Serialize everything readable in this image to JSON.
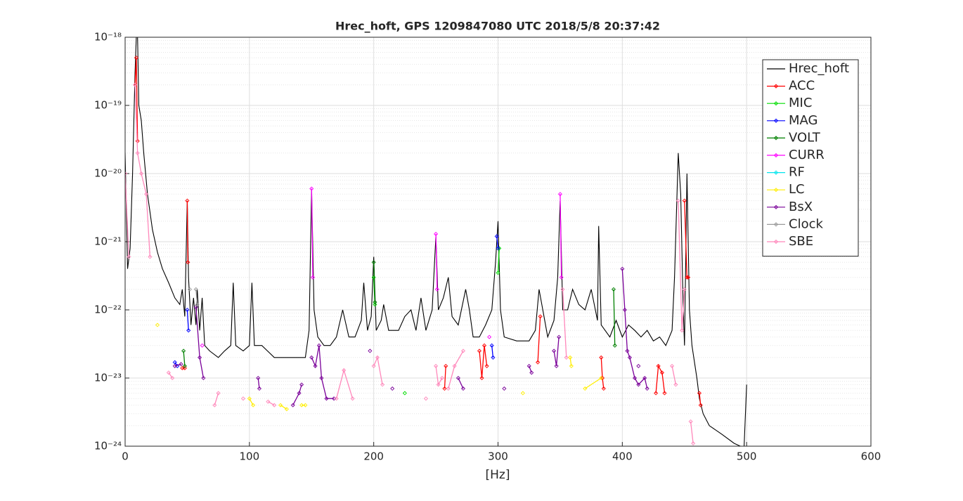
{
  "chart_data": {
    "type": "line",
    "title": "Hrec_hoft, GPS 1209847080 UTC 2018/5/8 20:37:42",
    "x_label": "[Hz]",
    "xlim": [
      0,
      600
    ],
    "xticks": [
      0,
      100,
      200,
      300,
      400,
      500,
      600
    ],
    "ylim": [
      1e-24,
      1e-18
    ],
    "y_scale": "log",
    "yticks": [
      {
        "value": 1e-24,
        "label": "10⁻²⁴"
      },
      {
        "value": 1e-23,
        "label": "10⁻²³"
      },
      {
        "value": 1e-22,
        "label": "10⁻²²"
      },
      {
        "value": 1e-21,
        "label": "10⁻²¹"
      },
      {
        "value": 1e-20,
        "label": "10⁻²⁰"
      },
      {
        "value": 1e-19,
        "label": "10⁻¹⁹"
      },
      {
        "value": 1e-18,
        "label": "10⁻¹⁸"
      }
    ],
    "grid": true,
    "minor_grid": true,
    "legend": "northeast",
    "series": [
      {
        "name": "Hrec_hoft",
        "color": "#000000",
        "marker": "none",
        "x": [
          0,
          2,
          4,
          6,
          8,
          9,
          10,
          11,
          13,
          15,
          18,
          22,
          26,
          30,
          35,
          40,
          44,
          46,
          48,
          50,
          51,
          53,
          55,
          57,
          58,
          60,
          62,
          64,
          68,
          75,
          80,
          85,
          87,
          89,
          95,
          100,
          102,
          104,
          110,
          120,
          130,
          140,
          145,
          148,
          150,
          152,
          155,
          160,
          165,
          170,
          175,
          180,
          185,
          190,
          192,
          195,
          198,
          200,
          202,
          206,
          208,
          212,
          220,
          225,
          230,
          234,
          238,
          242,
          247,
          250,
          252,
          256,
          260,
          263,
          268,
          274,
          277,
          280,
          285,
          290,
          295,
          298,
          300,
          302,
          305,
          315,
          325,
          330,
          333,
          337,
          340,
          345,
          348,
          350,
          352,
          356,
          360,
          365,
          370,
          375,
          380,
          381,
          383,
          390,
          395,
          400,
          405,
          410,
          415,
          420,
          425,
          430,
          435,
          440,
          442,
          445,
          447,
          449,
          450,
          452,
          454,
          456,
          460,
          462,
          465,
          470,
          480,
          490,
          495,
          498,
          500
        ],
        "values": [
          2e-20,
          4e-22,
          8e-22,
          1e-20,
          3e-19,
          1e-18,
          1e-18,
          1e-19,
          6e-20,
          2e-20,
          5e-21,
          1.5e-21,
          7e-22,
          4e-22,
          2.5e-22,
          1.5e-22,
          1.2e-22,
          2e-22,
          8e-23,
          4e-21,
          3e-22,
          6e-23,
          1.5e-22,
          6e-23,
          2e-22,
          5e-23,
          1.5e-22,
          3e-23,
          2.5e-23,
          2e-23,
          2.5e-23,
          3e-23,
          2.5e-22,
          3e-23,
          2.5e-23,
          3e-23,
          2.5e-22,
          3e-23,
          3e-23,
          2e-23,
          2e-23,
          2e-23,
          2e-23,
          5e-23,
          6e-21,
          1e-22,
          4e-23,
          3e-23,
          3e-23,
          4e-23,
          1e-22,
          4e-23,
          4e-23,
          7e-23,
          2.5e-22,
          5e-23,
          8e-23,
          6e-22,
          5e-23,
          7e-23,
          1.2e-22,
          5e-23,
          5e-23,
          8e-23,
          1e-22,
          5e-23,
          1.5e-22,
          5e-23,
          1e-22,
          1.2e-21,
          1e-22,
          1.5e-22,
          3e-22,
          8e-23,
          6e-23,
          2e-22,
          1e-22,
          4e-23,
          4e-23,
          6e-23,
          1e-22,
          5e-22,
          2e-21,
          1e-22,
          4e-23,
          3.5e-23,
          3.5e-23,
          5e-23,
          2e-22,
          8e-23,
          4e-23,
          7e-23,
          3e-22,
          4e-21,
          1e-22,
          1e-22,
          2e-22,
          1.2e-22,
          1e-22,
          2e-22,
          7e-23,
          1.7e-21,
          6e-23,
          4e-23,
          7e-23,
          4e-23,
          6e-23,
          5e-23,
          4e-23,
          5e-23,
          3.5e-23,
          4e-23,
          3e-23,
          5e-23,
          3e-22,
          2e-20,
          5e-21,
          1e-22,
          3e-23,
          1e-20,
          1e-22,
          3e-23,
          1e-23,
          5e-24,
          3e-24,
          2e-24,
          1.5e-24,
          1.1e-24,
          1e-24,
          1e-24,
          8e-24
        ]
      },
      {
        "name": "ACC",
        "color": "#ff0000",
        "marker": "diamond",
        "x": [
          8,
          9,
          10,
          null,
          50,
          50.5,
          null,
          46,
          48,
          null,
          257,
          258,
          null,
          285,
          287,
          289,
          291,
          null,
          332,
          334,
          null,
          383,
          384,
          385,
          null,
          427,
          429,
          432,
          434,
          null,
          450,
          452,
          453,
          null,
          462,
          463
        ],
        "values": [
          2e-19,
          5e-19,
          3e-20,
          null,
          4e-21,
          5e-22,
          null,
          1.4e-23,
          1.4e-23,
          null,
          7e-24,
          1.5e-23,
          null,
          2.5e-23,
          1e-23,
          3e-23,
          1.5e-23,
          null,
          1.7e-23,
          8e-23,
          null,
          2e-23,
          1e-23,
          7e-24,
          null,
          6e-24,
          1.5e-23,
          1.2e-23,
          6e-24,
          null,
          4e-21,
          3e-22,
          3e-22,
          null,
          6e-24,
          4e-24
        ]
      },
      {
        "name": "MIC",
        "color": "#00dd00",
        "marker": "diamond",
        "x": [
          200,
          201,
          null,
          225,
          null,
          300,
          301
        ],
        "values": [
          3e-22,
          1.2e-22,
          null,
          6e-24,
          null,
          3.5e-22,
          8e-22
        ]
      },
      {
        "name": "MAG",
        "color": "#0000ff",
        "marker": "diamond",
        "x": [
          50,
          51,
          null,
          299,
          300,
          null,
          40,
          42,
          null,
          295,
          296
        ],
        "values": [
          1e-22,
          5e-23,
          null,
          1.2e-21,
          8e-22,
          null,
          1.7e-23,
          1.5e-23,
          null,
          3e-23,
          2e-23
        ]
      },
      {
        "name": "VOLT",
        "color": "#008000",
        "marker": "diamond",
        "x": [
          200,
          201,
          null,
          47,
          48,
          null,
          393,
          394
        ],
        "values": [
          5e-22,
          1.3e-22,
          null,
          2.5e-23,
          1.5e-23,
          null,
          2e-22,
          3e-23
        ]
      },
      {
        "name": "CURR",
        "color": "#ff00ff",
        "marker": "diamond",
        "x": [
          150,
          151,
          null,
          250,
          251,
          null,
          350,
          351,
          null,
          62,
          null,
          293
        ],
        "values": [
          6e-21,
          3e-22,
          null,
          1.3e-21,
          2e-22,
          null,
          5e-21,
          3e-22,
          null,
          3e-23,
          null,
          4e-23
        ]
      },
      {
        "name": "RF",
        "color": "#00e5ee",
        "marker": "diamond",
        "x": [],
        "values": []
      },
      {
        "name": "LC",
        "color": "#ffee00",
        "marker": "diamond",
        "x": [
          26,
          null,
          100,
          103,
          null,
          125,
          130,
          null,
          142,
          145,
          null,
          370,
          383,
          null,
          358,
          359,
          null,
          320
        ],
        "values": [
          6e-23,
          null,
          5e-24,
          4e-24,
          null,
          4e-24,
          3.5e-24,
          null,
          4e-24,
          4e-24,
          null,
          7e-24,
          1e-23,
          null,
          2e-23,
          1.5e-23,
          null,
          6e-24
        ]
      },
      {
        "name": "BsX",
        "color": "#7a0099",
        "marker": "diamond",
        "x": [
          40,
          45,
          null,
          57,
          60,
          63,
          null,
          107,
          108,
          null,
          135,
          140,
          142,
          null,
          150,
          153,
          156,
          158,
          162,
          168,
          null,
          197,
          null,
          215,
          null,
          268,
          272,
          null,
          305,
          null,
          325,
          327,
          null,
          345,
          347,
          349,
          null,
          400,
          402,
          404,
          406,
          410,
          413,
          418,
          420,
          null,
          413
        ],
        "values": [
          1.5e-23,
          1.6e-23,
          null,
          1.1e-22,
          2e-23,
          1e-23,
          null,
          1e-23,
          7e-24,
          null,
          4e-24,
          6e-24,
          8e-24,
          null,
          2e-23,
          1.5e-23,
          3e-23,
          1e-23,
          5e-24,
          5e-24,
          null,
          2.5e-23,
          null,
          7e-24,
          null,
          1e-23,
          7e-24,
          null,
          7e-24,
          null,
          1.5e-23,
          1.2e-23,
          null,
          2.5e-23,
          1.5e-23,
          4e-23,
          null,
          4e-22,
          1e-22,
          2.5e-23,
          2e-23,
          1e-23,
          8e-24,
          1e-23,
          7e-24,
          null,
          1.5e-23
        ]
      },
      {
        "name": "Clock",
        "color": "#999999",
        "marker": "diamond",
        "x": [
          57,
          58,
          null,
          52
        ],
        "values": [
          2e-22,
          1.2e-22,
          null,
          2e-22
        ]
      },
      {
        "name": "SBE",
        "color": "#ff88bb",
        "marker": "diamond",
        "x": [
          0,
          3,
          null,
          8,
          10,
          13,
          17,
          20,
          null,
          35,
          38,
          null,
          72,
          75,
          null,
          95,
          null,
          115,
          120,
          null,
          170,
          176,
          183,
          null,
          200,
          203,
          207,
          null,
          242,
          null,
          250,
          252,
          255,
          null,
          260,
          265,
          272,
          null,
          352,
          355,
          null,
          445,
          448,
          450,
          null,
          440,
          443,
          null,
          455,
          457
        ],
        "values": [
          1e-20,
          6e-22,
          null,
          2e-19,
          2e-20,
          1e-20,
          5e-21,
          6e-22,
          null,
          1.2e-23,
          1e-23,
          null,
          4e-24,
          6e-24,
          null,
          5e-24,
          null,
          4.5e-24,
          4e-24,
          null,
          5e-24,
          1.3e-23,
          5e-24,
          null,
          1.5e-23,
          2e-23,
          8e-24,
          null,
          5e-24,
          null,
          1.5e-23,
          8e-24,
          1e-23,
          null,
          7e-24,
          1.5e-23,
          2.5e-23,
          null,
          2e-22,
          2e-23,
          null,
          4e-21,
          5e-23,
          2e-22,
          null,
          1.5e-23,
          8e-24,
          null,
          2.3e-24,
          1.1e-24
        ]
      }
    ]
  }
}
